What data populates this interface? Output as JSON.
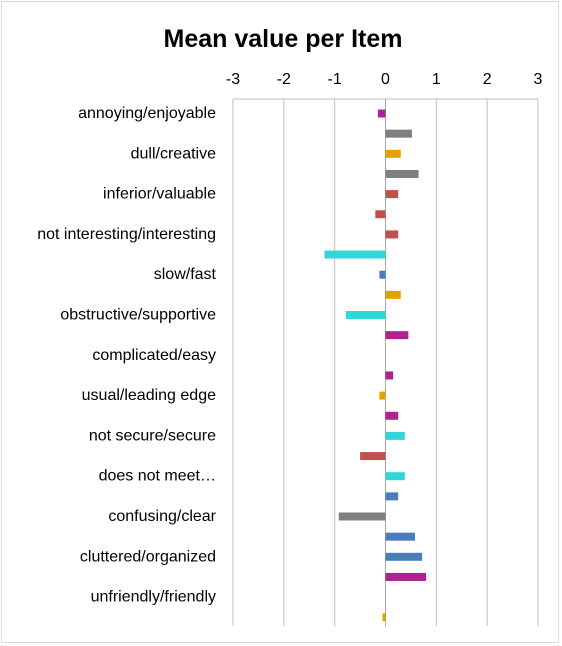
{
  "chart_data": {
    "type": "bar",
    "orientation": "horizontal",
    "title": "Mean value per Item",
    "xlabel": "",
    "ylabel": "",
    "xlim": [
      -3,
      3
    ],
    "x_ticks": [
      "-3",
      "-2",
      "-1",
      "0",
      "1",
      "2",
      "3"
    ],
    "x_axis_position": "top",
    "grid": true,
    "legend": "none",
    "categories": [
      "annoying/enjoyable",
      "dull/creative",
      "inferior/valuable",
      "not interesting/interesting",
      "slow/fast",
      "obstructive/supportive",
      "complicated/easy",
      "usual/leading edge",
      "not secure/secure",
      "does not meet…",
      "confusing/clear",
      "cluttered/organized",
      "unfriendly/friendly"
    ],
    "colors": {
      "purple": "#b0228f",
      "gray": "#7f7f7f",
      "orange": "#e3a200",
      "red": "#c0504d",
      "cyan": "#33d6d6",
      "blue": "#4a7ebb"
    },
    "bars": [
      {
        "value": -0.15,
        "color": "purple"
      },
      {
        "value": 0.52,
        "color": "gray"
      },
      {
        "value": 0.3,
        "color": "orange"
      },
      {
        "value": 0.65,
        "color": "gray"
      },
      {
        "value": 0.25,
        "color": "red"
      },
      {
        "value": -0.2,
        "color": "red"
      },
      {
        "value": 0.25,
        "color": "red"
      },
      {
        "value": -1.2,
        "color": "cyan"
      },
      {
        "value": -0.12,
        "color": "blue"
      },
      {
        "value": 0.3,
        "color": "orange"
      },
      {
        "value": -0.78,
        "color": "cyan"
      },
      {
        "value": 0.45,
        "color": "purple"
      },
      {
        "value": 0.0,
        "color": "none"
      },
      {
        "value": 0.15,
        "color": "purple"
      },
      {
        "value": -0.12,
        "color": "orange"
      },
      {
        "value": 0.25,
        "color": "purple"
      },
      {
        "value": 0.38,
        "color": "cyan"
      },
      {
        "value": -0.5,
        "color": "red"
      },
      {
        "value": 0.38,
        "color": "cyan"
      },
      {
        "value": 0.25,
        "color": "blue"
      },
      {
        "value": -0.92,
        "color": "gray"
      },
      {
        "value": 0.58,
        "color": "blue"
      },
      {
        "value": 0.72,
        "color": "blue"
      },
      {
        "value": 0.8,
        "color": "purple"
      },
      {
        "value": 0.0,
        "color": "none"
      },
      {
        "value": -0.06,
        "color": "orange"
      }
    ]
  }
}
